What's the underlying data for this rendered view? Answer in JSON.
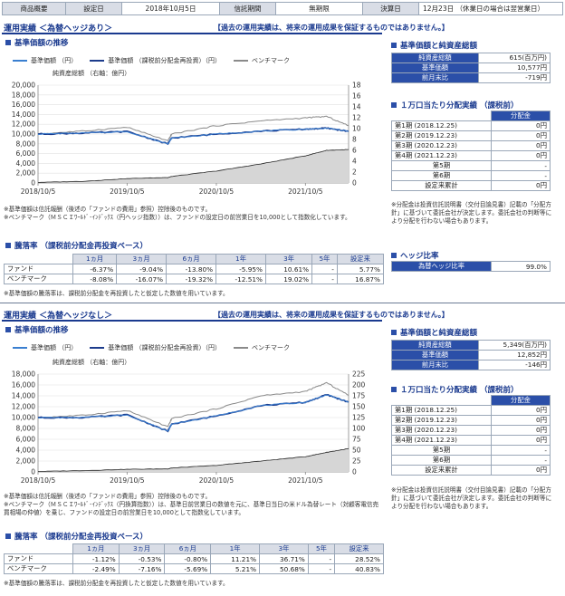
{
  "topbar": {
    "product_label": "商品概要",
    "setup_label": "設定日",
    "setup_value": "2018年10月5日",
    "term_label": "信託期間",
    "term_value": "無期限",
    "settle_label": "決算日",
    "settle_value": "12月23日 （休業日の場合は翌営業日）"
  },
  "sections": [
    {
      "title": "運用実績 ＜為替ヘッジあり＞",
      "notice": "【過去の運用実績は、将来の運用成果を保証するものではありません。】",
      "nav_head": "基準価額の推移",
      "legend": [
        "基準価額 （円）",
        "基準価額 （課税前分配金再投資）（円）",
        "ベンチマーク"
      ],
      "assets_label": "純資産総額 （右軸：億円）",
      "left_ticks": [
        "20,000",
        "18,000",
        "16,000",
        "14,000",
        "12,000",
        "10,000",
        "8,000",
        "6,000",
        "4,000",
        "2,000",
        "0"
      ],
      "right_ticks": [
        "18",
        "16",
        "14",
        "12",
        "10",
        "8",
        "6",
        "4",
        "2",
        "0"
      ],
      "x_ticks": [
        "2018/10/5",
        "2019/10/5",
        "2020/10/5",
        "2021/10/5"
      ],
      "notes": [
        "※基準価額は信託報酬（後述の「ファンドの費用」参照）控除後のものです。",
        "※ベンチマーク（ＭＳＣＩﾜｰﾙﾄﾞ･ｲﾝﾃﾞｯｸｽ（円ヘッジ指数））は、ファンドの設定日の前営業日を10,000として指数化しています。"
      ],
      "returns_head": "騰落率 （課税前分配金再投資ベース）",
      "returns_cols": [
        "1ヵ月",
        "3ヵ月",
        "6ヵ月",
        "1年",
        "3年",
        "5年",
        "設定来"
      ],
      "returns_rows": [
        {
          "label": "ファンド",
          "vals": [
            "-6.37%",
            "-9.04%",
            "-13.80%",
            "-5.95%",
            "10.61%",
            "-",
            "5.77%"
          ]
        },
        {
          "label": "ベンチマーク",
          "vals": [
            "-8.08%",
            "-16.07%",
            "-19.32%",
            "-12.51%",
            "19.02%",
            "-",
            "16.87%"
          ]
        }
      ],
      "returns_note": "※基準価額の騰落率は、課税前分配金を再投資したと仮定した数値を用いています。",
      "nav_table_head": "基準価額と純資産総額",
      "nav_rows": [
        {
          "label": "純資産総額",
          "value": "615(百万円)"
        },
        {
          "label": "基準価額",
          "value": "10,577円"
        },
        {
          "label": "前月末比",
          "value": "-719円"
        }
      ],
      "dist_head": "１万口当たり分配実績 （課税前）",
      "dist_col": "分配金",
      "dist_rows": [
        {
          "label": "第1期 (2018.12.25)",
          "value": "0円"
        },
        {
          "label": "第2期 (2019.12.23)",
          "value": "0円"
        },
        {
          "label": "第3期 (2020.12.23)",
          "value": "0円"
        },
        {
          "label": "第4期 (2021.12.23)",
          "value": "0円"
        },
        {
          "label": "第5期",
          "value": "-"
        },
        {
          "label": "第6期",
          "value": "-"
        },
        {
          "label": "設定来累計",
          "value": "0円"
        }
      ],
      "dist_note": "※分配金は投資信託説明書（交付目論見書）記載の「分配方針」に基づいて委託会社が決定します。委託会社の判断等により分配を行わない場合もあります。",
      "hedge_head": "ヘッジ比率",
      "hedge_label": "為替ヘッジ比率",
      "hedge_value": "99.0%"
    },
    {
      "title": "運用実績 ＜為替ヘッジなし＞",
      "notice": "【過去の運用実績は、将来の運用成果を保証するものではありません。】",
      "nav_head": "基準価額の推移",
      "legend": [
        "基準価額 （円）",
        "基準価額 （課税前分配金再投資）（円）",
        "ベンチマーク"
      ],
      "assets_label": "純資産総額 （右軸：億円）",
      "left_ticks": [
        "18,000",
        "16,000",
        "14,000",
        "12,000",
        "10,000",
        "8,000",
        "6,000",
        "4,000",
        "2,000",
        "0"
      ],
      "right_ticks": [
        "225",
        "200",
        "175",
        "150",
        "125",
        "100",
        "75",
        "50",
        "25",
        "0"
      ],
      "x_ticks": [
        "2018/10/5",
        "2019/10/5",
        "2020/10/5",
        "2021/10/5"
      ],
      "notes": [
        "※基準価額は信託報酬（後述の「ファンドの費用」参照）控除後のものです。",
        "※ベンチマーク（ＭＳＣＩﾜｰﾙﾄﾞ･ｲﾝﾃﾞｯｸｽ（円換算指数））は、基準日前営業日の数値を元に、基準日当日の米ドル為替レート（対顧客電信売買相場の仲値）を乗じ、ファンドの設定日の前営業日を10,000として指数化しています。"
      ],
      "returns_head": "騰落率 （課税前分配金再投資ベース）",
      "returns_cols": [
        "1ヵ月",
        "3ヵ月",
        "6ヵ月",
        "1年",
        "3年",
        "5年",
        "設定来"
      ],
      "returns_rows": [
        {
          "label": "ファンド",
          "vals": [
            "-1.12%",
            "-0.53%",
            "-0.80%",
            "11.21%",
            "36.71%",
            "-",
            "28.52%"
          ]
        },
        {
          "label": "ベンチマーク",
          "vals": [
            "-2.49%",
            "-7.16%",
            "-5.69%",
            "5.21%",
            "50.68%",
            "-",
            "40.83%"
          ]
        }
      ],
      "returns_note": "※基準価額の騰落率は、課税前分配金を再投資したと仮定した数値を用いています。",
      "nav_table_head": "基準価額と純資産総額",
      "nav_rows": [
        {
          "label": "純資産総額",
          "value": "5,349(百万円)"
        },
        {
          "label": "基準価額",
          "value": "12,852円"
        },
        {
          "label": "前月末比",
          "value": "-146円"
        }
      ],
      "dist_head": "１万口当たり分配実績 （課税前）",
      "dist_col": "分配金",
      "dist_rows": [
        {
          "label": "第1期 (2018.12.25)",
          "value": "0円"
        },
        {
          "label": "第2期 (2019.12.23)",
          "value": "0円"
        },
        {
          "label": "第3期 (2020.12.23)",
          "value": "0円"
        },
        {
          "label": "第4期 (2021.12.23)",
          "value": "0円"
        },
        {
          "label": "第5期",
          "value": "-"
        },
        {
          "label": "第6期",
          "value": "-"
        },
        {
          "label": "設定来累計",
          "value": "0円"
        }
      ],
      "dist_note": "※分配金は投資信託説明書（交付目論見書）記載の「分配方針」に基づいて委託会社が決定します。委託会社の判断等により分配を行わない場合もあります。"
    }
  ],
  "colors": {
    "nav": "#3a7fd0",
    "nav_reinvest": "#1d3c8c",
    "benchmark": "#8a8a8a",
    "assets_fill": "#d6d6d6",
    "assets_line": "#222222",
    "accent": "#1a3a8f"
  },
  "chart_data": [
    {
      "type": "line",
      "title": "基準価額の推移（為替ヘッジあり）",
      "x": [
        "2018/10/5",
        "2019/4/5",
        "2019/10/5",
        "2020/3/20",
        "2020/4/5",
        "2020/10/5",
        "2021/4/5",
        "2021/10/5",
        "2021/12/31",
        "2022/3/31"
      ],
      "left_axis": {
        "ylim": [
          0,
          20000
        ]
      },
      "right_axis": {
        "ylim": [
          0,
          18
        ]
      },
      "series": [
        {
          "name": "基準価額",
          "axis": "left",
          "values": [
            10000,
            10200,
            10500,
            8000,
            9200,
            10000,
            10600,
            11000,
            11200,
            10577
          ]
        },
        {
          "name": "基準価額（課税前分配金再投資）",
          "axis": "left",
          "values": [
            10000,
            10200,
            10500,
            8000,
            9200,
            10000,
            10600,
            11000,
            11200,
            10577
          ]
        },
        {
          "name": "ベンチマーク",
          "axis": "left",
          "values": [
            10000,
            10600,
            11400,
            8600,
            10000,
            11700,
            12700,
            13300,
            13600,
            11700
          ]
        },
        {
          "name": "純資産総額",
          "axis": "right",
          "values": [
            0.1,
            0.3,
            0.8,
            1.0,
            1.2,
            2.2,
            3.5,
            5.0,
            6.0,
            6.15
          ]
        }
      ]
    },
    {
      "type": "line",
      "title": "基準価額の推移（為替ヘッジなし）",
      "x": [
        "2018/10/5",
        "2019/4/5",
        "2019/10/5",
        "2020/3/20",
        "2020/4/5",
        "2020/10/5",
        "2021/4/5",
        "2021/10/5",
        "2021/12/31",
        "2022/3/31"
      ],
      "left_axis": {
        "ylim": [
          0,
          18000
        ]
      },
      "right_axis": {
        "ylim": [
          0,
          225
        ]
      },
      "series": [
        {
          "name": "基準価額",
          "axis": "left",
          "values": [
            10000,
            10000,
            10500,
            7500,
            8800,
            10300,
            12200,
            12800,
            14200,
            12852
          ]
        },
        {
          "name": "基準価額（課税前分配金再投資）",
          "axis": "left",
          "values": [
            10000,
            10000,
            10500,
            7500,
            8800,
            10300,
            12200,
            12800,
            14200,
            12852
          ]
        },
        {
          "name": "ベンチマーク",
          "axis": "left",
          "values": [
            10000,
            10400,
            11300,
            8300,
            9800,
            11600,
            14000,
            14800,
            16400,
            14100
          ]
        },
        {
          "name": "純資産総額",
          "axis": "right",
          "values": [
            1,
            3,
            6,
            7,
            9,
            15,
            25,
            35,
            45,
            53.5
          ]
        }
      ]
    }
  ]
}
